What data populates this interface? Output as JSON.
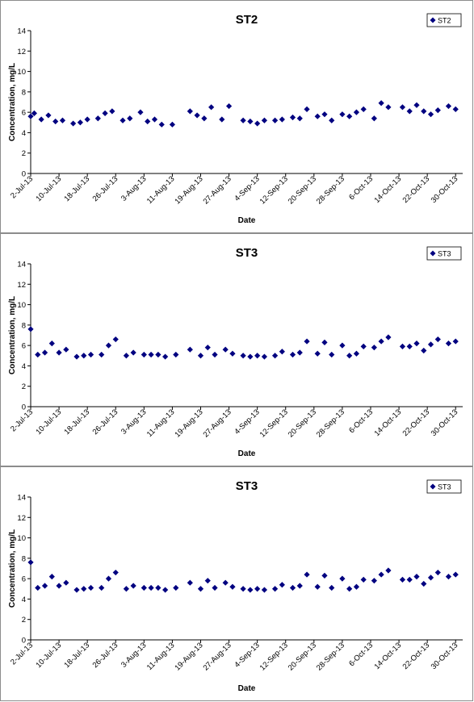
{
  "chart_data": [
    {
      "type": "scatter",
      "title": "ST2",
      "xlabel": "Date",
      "ylabel": "Concentration, mg/L",
      "ylim": [
        0,
        14
      ],
      "yticks": [
        "0",
        "2",
        "4",
        "6",
        "8",
        "10",
        "12",
        "14"
      ],
      "xlim": [
        "2-Jul-13",
        "1-Nov-13"
      ],
      "xticks": [
        "2-Jul-13",
        "10-Jul-13",
        "18-Jul-13",
        "26-Jul-13",
        "3-Aug-13",
        "11-Aug-13",
        "19-Aug-13",
        "27-Aug-13",
        "4-Sep-13",
        "12-Sep-13",
        "20-Sep-13",
        "28-Sep-13",
        "6-Oct-13",
        "14-Oct-13",
        "22-Oct-13",
        "30-Oct-13"
      ],
      "grid": false,
      "legend_position": "top-right",
      "series": [
        {
          "name": "ST2",
          "color": "#000080",
          "marker": "diamond",
          "points": [
            [
              "2-Jul-13",
              5.6
            ],
            [
              "3-Jul-13",
              5.9
            ],
            [
              "5-Jul-13",
              5.3
            ],
            [
              "7-Jul-13",
              5.7
            ],
            [
              "9-Jul-13",
              5.1
            ],
            [
              "11-Jul-13",
              5.2
            ],
            [
              "14-Jul-13",
              4.9
            ],
            [
              "16-Jul-13",
              5.0
            ],
            [
              "18-Jul-13",
              5.3
            ],
            [
              "21-Jul-13",
              5.4
            ],
            [
              "23-Jul-13",
              5.9
            ],
            [
              "25-Jul-13",
              6.1
            ],
            [
              "28-Jul-13",
              5.2
            ],
            [
              "30-Jul-13",
              5.4
            ],
            [
              "2-Aug-13",
              6.0
            ],
            [
              "4-Aug-13",
              5.1
            ],
            [
              "6-Aug-13",
              5.3
            ],
            [
              "8-Aug-13",
              4.8
            ],
            [
              "11-Aug-13",
              4.8
            ],
            [
              "16-Aug-13",
              6.1
            ],
            [
              "18-Aug-13",
              5.7
            ],
            [
              "20-Aug-13",
              5.4
            ],
            [
              "22-Aug-13",
              6.5
            ],
            [
              "25-Aug-13",
              5.3
            ],
            [
              "27-Aug-13",
              6.6
            ],
            [
              "31-Aug-13",
              5.2
            ],
            [
              "2-Sep-13",
              5.1
            ],
            [
              "4-Sep-13",
              4.9
            ],
            [
              "6-Sep-13",
              5.2
            ],
            [
              "9-Sep-13",
              5.2
            ],
            [
              "11-Sep-13",
              5.3
            ],
            [
              "14-Sep-13",
              5.5
            ],
            [
              "16-Sep-13",
              5.4
            ],
            [
              "18-Sep-13",
              6.3
            ],
            [
              "21-Sep-13",
              5.6
            ],
            [
              "23-Sep-13",
              5.8
            ],
            [
              "25-Sep-13",
              5.2
            ],
            [
              "28-Sep-13",
              5.8
            ],
            [
              "30-Sep-13",
              5.6
            ],
            [
              "2-Oct-13",
              6.0
            ],
            [
              "4-Oct-13",
              6.3
            ],
            [
              "7-Oct-13",
              5.4
            ],
            [
              "9-Oct-13",
              6.9
            ],
            [
              "11-Oct-13",
              6.5
            ],
            [
              "15-Oct-13",
              6.5
            ],
            [
              "17-Oct-13",
              6.1
            ],
            [
              "19-Oct-13",
              6.7
            ],
            [
              "21-Oct-13",
              6.1
            ],
            [
              "23-Oct-13",
              5.8
            ],
            [
              "25-Oct-13",
              6.2
            ],
            [
              "28-Oct-13",
              6.6
            ],
            [
              "30-Oct-13",
              6.3
            ]
          ]
        }
      ]
    },
    {
      "type": "scatter",
      "title": "ST3",
      "xlabel": "Date",
      "ylabel": "Concentration, mg/L",
      "ylim": [
        0,
        14
      ],
      "yticks": [
        "0",
        "2",
        "4",
        "6",
        "8",
        "10",
        "12",
        "14"
      ],
      "xlim": [
        "2-Jul-13",
        "1-Nov-13"
      ],
      "xticks": [
        "2-Jul-13",
        "10-Jul-13",
        "18-Jul-13",
        "26-Jul-13",
        "3-Aug-13",
        "11-Aug-13",
        "19-Aug-13",
        "27-Aug-13",
        "4-Sep-13",
        "12-Sep-13",
        "20-Sep-13",
        "28-Sep-13",
        "6-Oct-13",
        "14-Oct-13",
        "22-Oct-13",
        "30-Oct-13"
      ],
      "grid": false,
      "legend_position": "top-right",
      "series": [
        {
          "name": "ST3",
          "color": "#000080",
          "marker": "diamond",
          "points": [
            [
              "2-Jul-13",
              7.6
            ],
            [
              "4-Jul-13",
              5.1
            ],
            [
              "6-Jul-13",
              5.3
            ],
            [
              "8-Jul-13",
              6.2
            ],
            [
              "10-Jul-13",
              5.3
            ],
            [
              "12-Jul-13",
              5.6
            ],
            [
              "15-Jul-13",
              4.9
            ],
            [
              "17-Jul-13",
              5.0
            ],
            [
              "19-Jul-13",
              5.1
            ],
            [
              "22-Jul-13",
              5.1
            ],
            [
              "24-Jul-13",
              6.0
            ],
            [
              "26-Jul-13",
              6.6
            ],
            [
              "29-Jul-13",
              5.0
            ],
            [
              "31-Jul-13",
              5.3
            ],
            [
              "3-Aug-13",
              5.1
            ],
            [
              "5-Aug-13",
              5.1
            ],
            [
              "7-Aug-13",
              5.1
            ],
            [
              "9-Aug-13",
              4.9
            ],
            [
              "12-Aug-13",
              5.1
            ],
            [
              "16-Aug-13",
              5.6
            ],
            [
              "19-Aug-13",
              5.0
            ],
            [
              "21-Aug-13",
              5.8
            ],
            [
              "23-Aug-13",
              5.1
            ],
            [
              "26-Aug-13",
              5.6
            ],
            [
              "28-Aug-13",
              5.2
            ],
            [
              "31-Aug-13",
              5.0
            ],
            [
              "2-Sep-13",
              4.9
            ],
            [
              "4-Sep-13",
              5.0
            ],
            [
              "6-Sep-13",
              4.9
            ],
            [
              "9-Sep-13",
              5.0
            ],
            [
              "11-Sep-13",
              5.4
            ],
            [
              "14-Sep-13",
              5.1
            ],
            [
              "16-Sep-13",
              5.3
            ],
            [
              "18-Sep-13",
              6.4
            ],
            [
              "21-Sep-13",
              5.2
            ],
            [
              "23-Sep-13",
              6.3
            ],
            [
              "25-Sep-13",
              5.1
            ],
            [
              "28-Sep-13",
              6.0
            ],
            [
              "30-Sep-13",
              5.0
            ],
            [
              "2-Oct-13",
              5.2
            ],
            [
              "4-Oct-13",
              5.9
            ],
            [
              "7-Oct-13",
              5.8
            ],
            [
              "9-Oct-13",
              6.4
            ],
            [
              "11-Oct-13",
              6.8
            ],
            [
              "15-Oct-13",
              5.9
            ],
            [
              "17-Oct-13",
              5.9
            ],
            [
              "19-Oct-13",
              6.2
            ],
            [
              "21-Oct-13",
              5.5
            ],
            [
              "23-Oct-13",
              6.1
            ],
            [
              "25-Oct-13",
              6.6
            ],
            [
              "28-Oct-13",
              6.2
            ],
            [
              "30-Oct-13",
              6.4
            ]
          ]
        }
      ]
    },
    {
      "type": "scatter",
      "title": "ST3",
      "xlabel": "Date",
      "ylabel": "Concentration, mg/L",
      "ylim": [
        0,
        14
      ],
      "yticks": [
        "0",
        "2",
        "4",
        "6",
        "8",
        "10",
        "12",
        "14"
      ],
      "xlim": [
        "2-Jul-13",
        "1-Nov-13"
      ],
      "xticks": [
        "2-Jul-13",
        "10-Jul-13",
        "18-Jul-13",
        "26-Jul-13",
        "3-Aug-13",
        "11-Aug-13",
        "19-Aug-13",
        "27-Aug-13",
        "4-Sep-13",
        "12-Sep-13",
        "20-Sep-13",
        "28-Sep-13",
        "6-Oct-13",
        "14-Oct-13",
        "22-Oct-13",
        "30-Oct-13"
      ],
      "grid": false,
      "legend_position": "top-right",
      "series": [
        {
          "name": "ST3",
          "color": "#000080",
          "marker": "diamond",
          "points": [
            [
              "2-Jul-13",
              7.6
            ],
            [
              "4-Jul-13",
              5.1
            ],
            [
              "6-Jul-13",
              5.3
            ],
            [
              "8-Jul-13",
              6.2
            ],
            [
              "10-Jul-13",
              5.3
            ],
            [
              "12-Jul-13",
              5.6
            ],
            [
              "15-Jul-13",
              4.9
            ],
            [
              "17-Jul-13",
              5.0
            ],
            [
              "19-Jul-13",
              5.1
            ],
            [
              "22-Jul-13",
              5.1
            ],
            [
              "24-Jul-13",
              6.0
            ],
            [
              "26-Jul-13",
              6.6
            ],
            [
              "29-Jul-13",
              5.0
            ],
            [
              "31-Jul-13",
              5.3
            ],
            [
              "3-Aug-13",
              5.1
            ],
            [
              "5-Aug-13",
              5.1
            ],
            [
              "7-Aug-13",
              5.1
            ],
            [
              "9-Aug-13",
              4.9
            ],
            [
              "12-Aug-13",
              5.1
            ],
            [
              "16-Aug-13",
              5.6
            ],
            [
              "19-Aug-13",
              5.0
            ],
            [
              "21-Aug-13",
              5.8
            ],
            [
              "23-Aug-13",
              5.1
            ],
            [
              "26-Aug-13",
              5.6
            ],
            [
              "28-Aug-13",
              5.2
            ],
            [
              "31-Aug-13",
              5.0
            ],
            [
              "2-Sep-13",
              4.9
            ],
            [
              "4-Sep-13",
              5.0
            ],
            [
              "6-Sep-13",
              4.9
            ],
            [
              "9-Sep-13",
              5.0
            ],
            [
              "11-Sep-13",
              5.4
            ],
            [
              "14-Sep-13",
              5.1
            ],
            [
              "16-Sep-13",
              5.3
            ],
            [
              "18-Sep-13",
              6.4
            ],
            [
              "21-Sep-13",
              5.2
            ],
            [
              "23-Sep-13",
              6.3
            ],
            [
              "25-Sep-13",
              5.1
            ],
            [
              "28-Sep-13",
              6.0
            ],
            [
              "30-Sep-13",
              5.0
            ],
            [
              "2-Oct-13",
              5.2
            ],
            [
              "4-Oct-13",
              5.9
            ],
            [
              "7-Oct-13",
              5.8
            ],
            [
              "9-Oct-13",
              6.4
            ],
            [
              "11-Oct-13",
              6.8
            ],
            [
              "15-Oct-13",
              5.9
            ],
            [
              "17-Oct-13",
              5.9
            ],
            [
              "19-Oct-13",
              6.2
            ],
            [
              "21-Oct-13",
              5.5
            ],
            [
              "23-Oct-13",
              6.1
            ],
            [
              "25-Oct-13",
              6.6
            ],
            [
              "28-Oct-13",
              6.2
            ],
            [
              "30-Oct-13",
              6.4
            ]
          ]
        }
      ]
    }
  ]
}
